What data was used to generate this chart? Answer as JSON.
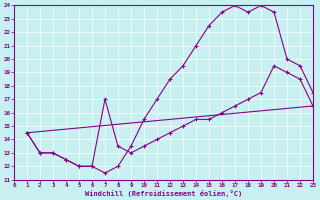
{
  "xlabel": "Windchill (Refroidissement éolien,°C)",
  "bg_color": "#c8f0f0",
  "line_color": "#880088",
  "xlim": [
    0,
    23
  ],
  "ylim": [
    11,
    24
  ],
  "xticks": [
    0,
    1,
    2,
    3,
    4,
    5,
    6,
    7,
    8,
    9,
    10,
    11,
    12,
    13,
    14,
    15,
    16,
    17,
    18,
    19,
    20,
    21,
    22,
    23
  ],
  "yticks": [
    11,
    12,
    13,
    14,
    15,
    16,
    17,
    18,
    19,
    20,
    21,
    22,
    23,
    24
  ],
  "line1_x": [
    1,
    2,
    3,
    4,
    5,
    6,
    7,
    8,
    9,
    10,
    11,
    12,
    13,
    14,
    15,
    16,
    17,
    18,
    19,
    20,
    21,
    22,
    23
  ],
  "line1_y": [
    14.5,
    13.0,
    13.0,
    12.5,
    12.0,
    12.0,
    11.5,
    12.0,
    13.5,
    15.5,
    17.0,
    18.5,
    19.5,
    21.0,
    22.5,
    23.5,
    24.0,
    23.5,
    24.0,
    23.5,
    20.0,
    19.5,
    17.5
  ],
  "line2_x": [
    1,
    2,
    3,
    4,
    5,
    6,
    7,
    8,
    9,
    10,
    11,
    12,
    13,
    14,
    15,
    16,
    17,
    18,
    19,
    20,
    21,
    22,
    23
  ],
  "line2_y": [
    14.5,
    13.0,
    13.0,
    12.5,
    12.0,
    12.0,
    17.0,
    13.5,
    13.0,
    13.5,
    14.0,
    14.5,
    15.0,
    15.5,
    15.5,
    16.0,
    16.5,
    17.0,
    17.5,
    19.5,
    19.0,
    18.5,
    16.5
  ],
  "line3_x": [
    1,
    23
  ],
  "line3_y": [
    14.5,
    16.5
  ]
}
